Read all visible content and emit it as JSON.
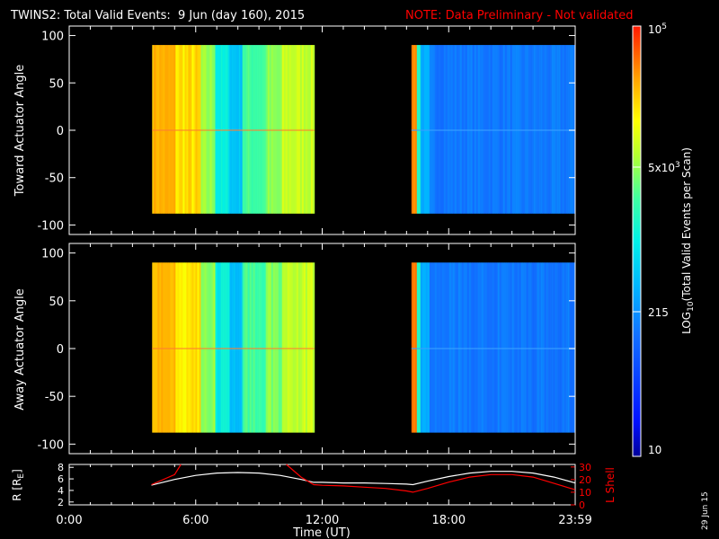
{
  "header": {
    "title": "TWINS2: Total Valid Events:  9 Jun (day 160), 2015",
    "note": "NOTE: Data Preliminary - Not validated"
  },
  "colors": {
    "background": "#000000",
    "axes": "#ffffff",
    "note": "#ff0000",
    "r_line": "#ffffff",
    "lshell_line": "#ff0000"
  },
  "footer": {
    "run_date": "29 Jun 15"
  },
  "colorbar": {
    "label_prefix": "LOG",
    "label_sub": "10",
    "label_suffix": "(Total Valid Events per Scan)",
    "tick_10": "10",
    "tick_215": "215",
    "tick_5e3_base": "5x10",
    "tick_5e3_exp": "3",
    "tick_1e5_base": "10",
    "tick_1e5_exp": "5"
  },
  "chart_data": [
    {
      "type": "heatmap",
      "panel": "top",
      "ylabel": "Toward Actuator Angle",
      "ylim": [
        -110,
        110
      ],
      "y_ticks": [
        "100",
        "50",
        "0",
        "-50",
        "-100"
      ],
      "xlim_hours": [
        0,
        24
      ],
      "colorscale": "log10 Total Valid Events per Scan",
      "blocks": [
        {
          "start_ut": "03:56",
          "end_ut": "11:38",
          "angle_range": [
            -88,
            90
          ],
          "level": "high (orange to yellow-green)"
        },
        {
          "start_ut": "16:14",
          "end_ut": "23:59",
          "angle_range": [
            -88,
            90
          ],
          "level": "low (blue)"
        }
      ]
    },
    {
      "type": "heatmap",
      "panel": "middle",
      "ylabel": "Away Actuator Angle",
      "ylim": [
        -110,
        110
      ],
      "y_ticks": [
        "100",
        "50",
        "0",
        "-50",
        "-100"
      ],
      "xlim_hours": [
        0,
        24
      ],
      "colorscale": "log10 Total Valid Events per Scan",
      "blocks": [
        {
          "start_ut": "03:56",
          "end_ut": "11:38",
          "angle_range": [
            -88,
            90
          ],
          "level": "high (orange to yellow-green)"
        },
        {
          "start_ut": "16:14",
          "end_ut": "23:59",
          "angle_range": [
            -88,
            90
          ],
          "level": "low (blue)"
        }
      ]
    },
    {
      "type": "line",
      "panel": "bottom",
      "xlabel": "Time (UT)",
      "x_ticks": [
        "0:00",
        "6:00",
        "12:00",
        "18:00",
        "23:59"
      ],
      "ylabel_left": "R [R",
      "ylabel_left_sub": "E",
      "ylabel_left_end": "]",
      "ylabel_right": "L Shell",
      "y_ticks_left": [
        "8",
        "6",
        "4",
        "2"
      ],
      "y_ticks_right": [
        "30",
        "20",
        "10",
        "0"
      ],
      "ylim_left": [
        1.5,
        8.5
      ],
      "ylim_right": [
        0,
        32
      ],
      "series": [
        {
          "name": "R [RE]",
          "axis": "left",
          "x": [
            3.9,
            5,
            6,
            7,
            8,
            9,
            10,
            11,
            11.6,
            12,
            13,
            14,
            15,
            16,
            16.3,
            17,
            18,
            19,
            20,
            21,
            22,
            23,
            23.99
          ],
          "y": [
            4.9,
            5.9,
            6.6,
            7.0,
            7.1,
            7.0,
            6.6,
            5.9,
            5.4,
            5.4,
            5.3,
            5.3,
            5.2,
            5.1,
            5.0,
            5.6,
            6.4,
            7.0,
            7.3,
            7.3,
            7.0,
            6.3,
            5.3
          ]
        },
        {
          "name": "L Shell",
          "axis": "right",
          "x": [
            3.9,
            5,
            5.3,
            null,
            10.3,
            11,
            11.6,
            12,
            13,
            14,
            15,
            16,
            16.3,
            17,
            18,
            19,
            20,
            21,
            22,
            23,
            23.99
          ],
          "y": [
            16,
            24,
            32,
            null,
            32,
            22,
            16,
            15.5,
            15,
            14,
            13,
            11,
            10,
            13,
            18,
            22,
            24,
            24,
            22,
            17,
            12
          ]
        }
      ]
    }
  ]
}
